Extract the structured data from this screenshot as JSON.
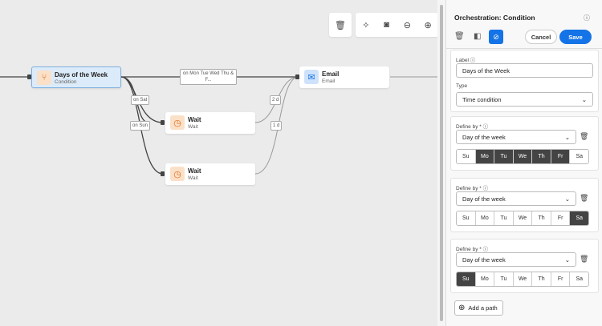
{
  "canvas": {
    "toolbar": {
      "delete_icon": "trash-icon",
      "tools": [
        "magic-wand-icon",
        "camera-icon",
        "zoom-out-icon",
        "zoom-in-icon"
      ]
    },
    "nodes": {
      "condition": {
        "title": "Days of the Week",
        "subtitle": "Condition",
        "icon": "branch-icon"
      },
      "email": {
        "title": "Email",
        "subtitle": "Email",
        "icon": "envelope-icon"
      },
      "wait1": {
        "title": "Wait",
        "subtitle": "Wait",
        "icon": "clock-icon"
      },
      "wait2": {
        "title": "Wait",
        "subtitle": "Wait",
        "icon": "clock-icon"
      }
    },
    "edge_labels": {
      "weekdays": "on Mon Tue Wed Thu & F...",
      "sat": "on Sat",
      "sun": "on Sun",
      "d2": "2 d",
      "d1": "1 d"
    }
  },
  "panel": {
    "title": "Orchestration: Condition",
    "cancel": "Cancel",
    "save": "Save",
    "label_label": "Label",
    "label_value": "Days of the Week",
    "type_label": "Type",
    "type_value": "Time condition",
    "day_names": [
      "Su",
      "Mo",
      "Tu",
      "We",
      "Th",
      "Fr",
      "Sa"
    ],
    "conditions": [
      {
        "define_by": "Define by *",
        "value": "Day of the week",
        "selected": [
          "Mo",
          "Tu",
          "We",
          "Th",
          "Fr"
        ]
      },
      {
        "define_by": "Define by *",
        "value": "Day of the week",
        "selected": [
          "Sa"
        ]
      },
      {
        "define_by": "Define by *",
        "value": "Day of the week",
        "selected": [
          "Su"
        ]
      }
    ],
    "add_path": "Add a path"
  },
  "colors": {
    "accent": "#1473e6",
    "selected_day": "#444444",
    "wait_icon_bg": "#fbe0c8",
    "email_icon_bg": "#cfe2fb"
  }
}
